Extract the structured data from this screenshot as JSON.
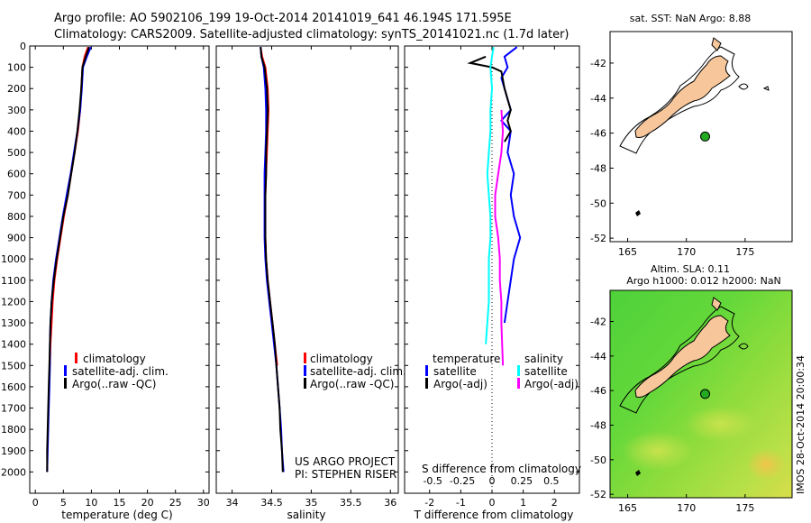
{
  "header": {
    "line1": "Argo profile: AO 5902106_199 19-Oct-2014 20141019_641 46.194S 171.595E",
    "line2": "Climatology: CARS2009. Satellite-adjusted climatology: synTS_20141021.nc (1.7d later)"
  },
  "colors": {
    "climatology": "#ff0000",
    "satellite": "#0000ff",
    "argo": "#000000",
    "s_satellite": "#00ffff",
    "s_argo": "#ff00ff",
    "land": "#f7c79b",
    "float_marker": "#22aa22"
  },
  "chart_data": [
    {
      "id": "temperature-panel",
      "type": "line",
      "xlabel": "temperature (deg C)",
      "ylabel": "",
      "xlim": [
        -1,
        31
      ],
      "ylim": [
        0,
        2100
      ],
      "xticks": [
        0,
        5,
        10,
        15,
        20,
        25,
        30
      ],
      "yticks": [
        0,
        100,
        200,
        300,
        400,
        500,
        600,
        700,
        800,
        900,
        1000,
        1100,
        1200,
        1300,
        1400,
        1500,
        1600,
        1700,
        1800,
        1900,
        2000
      ],
      "legend": [
        "climatology",
        "satellite-adj. clim.",
        "Argo(..raw -QC)"
      ],
      "series": [
        {
          "name": "climatology",
          "color": "#ff0000",
          "points": [
            [
              9.4,
              5
            ],
            [
              8.8,
              50
            ],
            [
              8.4,
              100
            ],
            [
              8.2,
              200
            ],
            [
              8.0,
              300
            ],
            [
              7.6,
              400
            ],
            [
              7.0,
              500
            ],
            [
              6.4,
              600
            ],
            [
              5.8,
              700
            ],
            [
              5.1,
              800
            ],
            [
              4.5,
              900
            ],
            [
              3.9,
              1000
            ],
            [
              3.4,
              1100
            ],
            [
              3.1,
              1200
            ],
            [
              2.9,
              1300
            ],
            [
              2.7,
              1400
            ],
            [
              2.6,
              1500
            ]
          ]
        },
        {
          "name": "satellite-adj. clim.",
          "color": "#0000ff",
          "points": [
            [
              9.9,
              5
            ],
            [
              9.2,
              50
            ],
            [
              8.5,
              100
            ],
            [
              8.3,
              200
            ],
            [
              8.0,
              300
            ],
            [
              7.5,
              400
            ],
            [
              6.9,
              500
            ],
            [
              6.3,
              600
            ],
            [
              5.6,
              700
            ],
            [
              4.9,
              800
            ],
            [
              4.3,
              900
            ],
            [
              3.7,
              1000
            ],
            [
              3.2,
              1100
            ],
            [
              2.9,
              1200
            ],
            [
              2.7,
              1300
            ],
            [
              2.6,
              1400
            ],
            [
              2.6,
              1500
            ],
            [
              2.5,
              1600
            ],
            [
              2.4,
              1700
            ],
            [
              2.3,
              1800
            ],
            [
              2.2,
              1900
            ],
            [
              2.1,
              2000
            ]
          ]
        },
        {
          "name": "Argo(..raw -QC)",
          "color": "#000000",
          "points": [
            [
              9.6,
              5
            ],
            [
              9.0,
              50
            ],
            [
              8.4,
              100
            ],
            [
              8.2,
              200
            ],
            [
              7.9,
              300
            ],
            [
              7.5,
              400
            ],
            [
              7.0,
              500
            ],
            [
              6.4,
              600
            ],
            [
              5.8,
              700
            ],
            [
              5.0,
              800
            ],
            [
              4.4,
              900
            ],
            [
              3.8,
              1000
            ],
            [
              3.3,
              1100
            ],
            [
              2.9,
              1200
            ],
            [
              2.7,
              1300
            ],
            [
              2.6,
              1400
            ],
            [
              2.5,
              1500
            ],
            [
              2.4,
              1600
            ],
            [
              2.3,
              1700
            ],
            [
              2.2,
              1800
            ],
            [
              2.1,
              1900
            ],
            [
              2.1,
              2000
            ]
          ]
        }
      ]
    },
    {
      "id": "salinity-panel",
      "type": "line",
      "xlabel": "salinity",
      "xlim": [
        33.8,
        36.1
      ],
      "ylim": [
        0,
        2100
      ],
      "xticks": [
        34,
        34.5,
        35,
        35.5,
        36
      ],
      "legend": [
        "climatology",
        "satellite-adj. clim.",
        "Argo(..raw -QC)"
      ],
      "series": [
        {
          "name": "climatology",
          "color": "#ff0000",
          "points": [
            [
              34.36,
              5
            ],
            [
              34.38,
              50
            ],
            [
              34.42,
              100
            ],
            [
              34.45,
              200
            ],
            [
              34.46,
              300
            ],
            [
              34.45,
              400
            ],
            [
              34.44,
              500
            ],
            [
              34.43,
              600
            ],
            [
              34.42,
              700
            ],
            [
              34.42,
              800
            ],
            [
              34.42,
              900
            ],
            [
              34.43,
              1000
            ],
            [
              34.45,
              1100
            ],
            [
              34.48,
              1200
            ],
            [
              34.51,
              1300
            ],
            [
              34.54,
              1400
            ],
            [
              34.57,
              1500
            ]
          ]
        },
        {
          "name": "satellite-adj. clim.",
          "color": "#0000ff",
          "points": [
            [
              34.36,
              5
            ],
            [
              34.37,
              50
            ],
            [
              34.4,
              100
            ],
            [
              34.42,
              200
            ],
            [
              34.43,
              300
            ],
            [
              34.43,
              400
            ],
            [
              34.42,
              500
            ],
            [
              34.41,
              600
            ],
            [
              34.41,
              700
            ],
            [
              34.41,
              800
            ],
            [
              34.41,
              900
            ],
            [
              34.42,
              1000
            ],
            [
              34.44,
              1100
            ],
            [
              34.47,
              1200
            ],
            [
              34.5,
              1300
            ],
            [
              34.53,
              1400
            ],
            [
              34.56,
              1500
            ],
            [
              34.58,
              1600
            ],
            [
              34.6,
              1700
            ],
            [
              34.62,
              1800
            ],
            [
              34.63,
              1900
            ],
            [
              34.65,
              2000
            ]
          ]
        },
        {
          "name": "Argo(..raw -QC)",
          "color": "#000000",
          "points": [
            [
              34.36,
              5
            ],
            [
              34.37,
              50
            ],
            [
              34.41,
              100
            ],
            [
              34.44,
              200
            ],
            [
              34.45,
              300
            ],
            [
              34.44,
              400
            ],
            [
              34.43,
              500
            ],
            [
              34.43,
              600
            ],
            [
              34.42,
              700
            ],
            [
              34.42,
              800
            ],
            [
              34.42,
              900
            ],
            [
              34.43,
              1000
            ],
            [
              34.45,
              1100
            ],
            [
              34.48,
              1200
            ],
            [
              34.51,
              1300
            ],
            [
              34.54,
              1400
            ],
            [
              34.56,
              1500
            ],
            [
              34.58,
              1600
            ],
            [
              34.6,
              1700
            ],
            [
              34.61,
              1800
            ],
            [
              34.63,
              1900
            ],
            [
              34.64,
              2000
            ]
          ]
        }
      ],
      "annotation": [
        "US ARGO PROJECT",
        "PI: STEPHEN RISER"
      ]
    },
    {
      "id": "difference-panel",
      "type": "line",
      "xlabel": "T difference from climatology",
      "top_xlabel": "S difference from climatology",
      "xlim": [
        -2.8,
        2.8
      ],
      "ylim": [
        0,
        2100
      ],
      "xticks": [
        -2,
        -1,
        0,
        1,
        2
      ],
      "top_xticks": [
        {
          "value": -0.5,
          "label": "-0.5",
          "at": -1.9
        },
        {
          "value": -0.25,
          "label": "-0.25",
          "at": -0.95
        },
        {
          "value": 0,
          "label": "0",
          "at": 0
        },
        {
          "value": 0.25,
          "label": "0.25",
          "at": 0.95
        },
        {
          "value": 0.5,
          "label": "0.5",
          "at": 1.9
        }
      ],
      "legend_left_title": "temperature",
      "legend_right_title": "salinity",
      "legend": [
        "satellite",
        "Argo(-adj)",
        "satellite",
        "Argo(-adj)"
      ],
      "series": [
        {
          "name": "T satellite",
          "color": "#0000ff",
          "points": [
            [
              0.8,
              5
            ],
            [
              0.4,
              50
            ],
            [
              0.5,
              100
            ],
            [
              0.3,
              150
            ],
            [
              0.4,
              200
            ],
            [
              0.5,
              250
            ],
            [
              0.6,
              300
            ],
            [
              0.3,
              350
            ],
            [
              0.6,
              400
            ],
            [
              0.5,
              500
            ],
            [
              0.7,
              600
            ],
            [
              0.6,
              700
            ],
            [
              0.7,
              800
            ],
            [
              0.9,
              900
            ],
            [
              0.7,
              1000
            ],
            [
              0.6,
              1100
            ],
            [
              0.5,
              1200
            ],
            [
              0.4,
              1300
            ]
          ]
        },
        {
          "name": "T Argo(-adj)",
          "color": "#000000",
          "points": [
            [
              -0.2,
              50
            ],
            [
              -0.7,
              80
            ],
            [
              0.0,
              100
            ],
            [
              0.3,
              120
            ],
            [
              0.4,
              200
            ],
            [
              0.5,
              250
            ],
            [
              0.6,
              300
            ],
            [
              0.5,
              350
            ],
            [
              0.6,
              400
            ],
            [
              0.4,
              450
            ]
          ]
        },
        {
          "name": "S satellite",
          "color": "#00ffff",
          "points": [
            [
              0.05,
              5
            ],
            [
              0.0,
              50
            ],
            [
              -0.05,
              100
            ],
            [
              0.0,
              200
            ],
            [
              -0.05,
              300
            ],
            [
              -0.05,
              400
            ],
            [
              -0.1,
              500
            ],
            [
              -0.15,
              600
            ],
            [
              -0.1,
              700
            ],
            [
              -0.05,
              800
            ],
            [
              -0.05,
              900
            ],
            [
              -0.1,
              1000
            ],
            [
              -0.1,
              1100
            ],
            [
              -0.1,
              1200
            ],
            [
              -0.15,
              1300
            ],
            [
              -0.2,
              1400
            ]
          ]
        },
        {
          "name": "S Argo(-adj)",
          "color": "#ff00ff",
          "points": [
            [
              0.3,
              300
            ],
            [
              0.35,
              400
            ],
            [
              0.3,
              500
            ],
            [
              0.2,
              600
            ],
            [
              0.1,
              700
            ],
            [
              0.1,
              800
            ],
            [
              0.2,
              900
            ],
            [
              0.25,
              1000
            ],
            [
              0.25,
              1100
            ],
            [
              0.3,
              1200
            ],
            [
              0.3,
              1300
            ],
            [
              0.35,
              1500
            ]
          ]
        }
      ]
    },
    {
      "id": "sst-map",
      "type": "map",
      "title": "sat. SST: NaN Argo: 8.88",
      "xlim": [
        163.5,
        179
      ],
      "ylim": [
        -52.2,
        -40.2
      ],
      "xticks": [
        165,
        170,
        175
      ],
      "yticks": [
        -42,
        -44,
        -46,
        -48,
        -50,
        -52
      ],
      "float_position": {
        "lon": 171.595,
        "lat": -46.194
      }
    },
    {
      "id": "sla-map",
      "type": "map",
      "title_line1": "Altim. SLA: 0.11",
      "title_line2": "Argo h1000: 0.012 h2000: NaN",
      "xlim": [
        163.5,
        179
      ],
      "ylim": [
        -52.2,
        -40.2
      ],
      "xticks": [
        165,
        170,
        175
      ],
      "yticks": [
        -42,
        -44,
        -46,
        -48,
        -50,
        -52
      ],
      "float_position": {
        "lon": 171.595,
        "lat": -46.194
      }
    }
  ],
  "stamp": "IMOS 28-Oct-2014 20:00:34"
}
